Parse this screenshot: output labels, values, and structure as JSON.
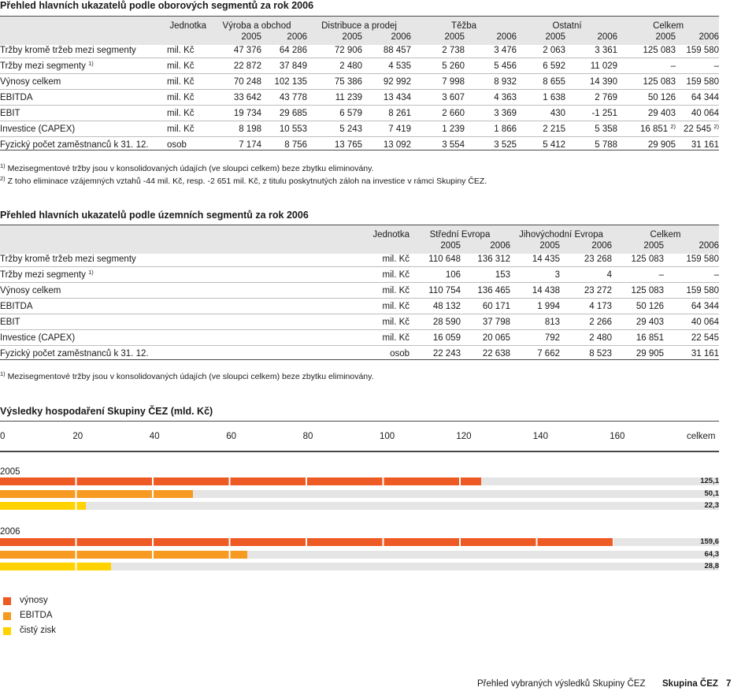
{
  "colors": {
    "revenue": "#ee5a24",
    "ebitda": "#f79a22",
    "net_profit": "#ffd200",
    "track": "#e5e5e5"
  },
  "table1": {
    "title": "Přehled hlavních ukazatelů podle oborových segmentů za rok 2006",
    "headers": {
      "unit": "Jednotka",
      "groups": [
        "Výroba a obchod",
        "Distribuce a prodej",
        "Těžba",
        "Ostatní",
        "Celkem"
      ],
      "years": [
        "2005",
        "2006",
        "2005",
        "2006",
        "2005",
        "2006",
        "2005",
        "2006",
        "2005",
        "2006"
      ]
    },
    "rows": [
      {
        "label": "Tržby kromě tržeb mezi segmenty",
        "unit": "mil. Kč",
        "v": [
          "47 376",
          "64 286",
          "72 906",
          "88 457",
          "2 738",
          "3 476",
          "2 063",
          "3 361",
          "125 083",
          "159 580"
        ]
      },
      {
        "label": "Tržby mezi segmenty",
        "sup": "1)",
        "unit": "mil. Kč",
        "v": [
          "22 872",
          "37 849",
          "2 480",
          "4 535",
          "5 260",
          "5 456",
          "6 592",
          "11 029",
          "–",
          "–"
        ]
      },
      {
        "label": "Výnosy celkem",
        "unit": "mil. Kč",
        "v": [
          "70 248",
          "102 135",
          "75 386",
          "92 992",
          "7 998",
          "8 932",
          "8 655",
          "14 390",
          "125 083",
          "159 580"
        ]
      },
      {
        "label": "EBITDA",
        "unit": "mil. Kč",
        "v": [
          "33 642",
          "43 778",
          "11 239",
          "13 434",
          "3 607",
          "4 363",
          "1 638",
          "2 769",
          "50 126",
          "64 344"
        ]
      },
      {
        "label": "EBIT",
        "unit": "mil. Kč",
        "v": [
          "19 734",
          "29 685",
          "6 579",
          "8 261",
          "2 660",
          "3 369",
          "430",
          "-1 251",
          "29 403",
          "40 064"
        ]
      },
      {
        "label": "Investice (CAPEX)",
        "unit": "mil. Kč",
        "v": [
          "8 198",
          "10 553",
          "5 243",
          "7 419",
          "1 239",
          "1 866",
          "2 215",
          "5 358",
          "16 851",
          "22 545"
        ],
        "sups": [
          "",
          "",
          "",
          "",
          "",
          "",
          "",
          "",
          "2)",
          "2)"
        ]
      },
      {
        "label": "Fyzický počet zaměstnanců k 31. 12.",
        "unit": "osob",
        "v": [
          "7 174",
          "8 756",
          "13 765",
          "13 092",
          "3 554",
          "3 525",
          "5 412",
          "5 788",
          "29 905",
          "31 161"
        ]
      }
    ],
    "note1_mark": "1)",
    "note1": "Mezisegmentové tržby jsou v konsolidovaných údajích (ve sloupci celkem) beze zbytku eliminovány.",
    "note2_mark": "2)",
    "note2": "Z toho eliminace vzájemných vztahů -44 mil. Kč, resp. -2 651 mil. Kč, z titulu poskytnutých záloh na investice v rámci Skupiny ČEZ."
  },
  "table2": {
    "title": "Přehled hlavních ukazatelů podle územních segmentů za rok 2006",
    "headers": {
      "unit": "Jednotka",
      "groups": [
        "Střední Evropa",
        "Jihovýchodní Evropa",
        "Celkem"
      ],
      "years": [
        "2005",
        "2006",
        "2005",
        "2006",
        "2005",
        "2006"
      ]
    },
    "rows": [
      {
        "label": "Tržby kromě tržeb mezi segmenty",
        "unit": "mil. Kč",
        "v": [
          "110 648",
          "136 312",
          "14 435",
          "23 268",
          "125 083",
          "159 580"
        ]
      },
      {
        "label": "Tržby mezi segmenty",
        "sup": "1)",
        "unit": "mil. Kč",
        "v": [
          "106",
          "153",
          "3",
          "4",
          "–",
          "–"
        ]
      },
      {
        "label": "Výnosy celkem",
        "unit": "mil. Kč",
        "v": [
          "110 754",
          "136 465",
          "14 438",
          "23 272",
          "125 083",
          "159 580"
        ]
      },
      {
        "label": "EBITDA",
        "unit": "mil. Kč",
        "v": [
          "48 132",
          "60 171",
          "1 994",
          "4 173",
          "50 126",
          "64 344"
        ]
      },
      {
        "label": "EBIT",
        "unit": "mil. Kč",
        "v": [
          "28 590",
          "37 798",
          "813",
          "2 266",
          "29 403",
          "40 064"
        ]
      },
      {
        "label": "Investice (CAPEX)",
        "unit": "mil. Kč",
        "v": [
          "16 059",
          "20 065",
          "792",
          "2 480",
          "16 851",
          "22 545"
        ]
      },
      {
        "label": "Fyzický počet zaměstnanců k 31. 12.",
        "unit": "osob",
        "v": [
          "22 243",
          "22 638",
          "7 662",
          "8 523",
          "29 905",
          "31 161"
        ]
      }
    ],
    "note1_mark": "1)",
    "note1": "Mezisegmentové tržby jsou v konsolidovaných údajích (ve sloupci celkem) beze zbytku eliminovány."
  },
  "chart_data": {
    "type": "bar",
    "orientation": "horizontal",
    "title": "Výsledky hospodaření Skupiny ČEZ (mld. Kč)",
    "x_ticks": [
      "0",
      "20",
      "40",
      "60",
      "80",
      "100",
      "120",
      "140",
      "160"
    ],
    "x_total_label": "celkem",
    "xlim": [
      0,
      180
    ],
    "categories": [
      "2005",
      "2006"
    ],
    "series": [
      {
        "name": "výnosy",
        "color": "#ee5a24",
        "values": [
          125.1,
          159.6
        ],
        "labels": [
          "125,1",
          "159,6"
        ]
      },
      {
        "name": "EBITDA",
        "color": "#f79a22",
        "values": [
          50.1,
          64.3
        ],
        "labels": [
          "50,1",
          "64,3"
        ]
      },
      {
        "name": "čistý zisk",
        "color": "#ffd200",
        "values": [
          22.3,
          28.8
        ],
        "labels": [
          "22,3",
          "28,8"
        ]
      }
    ],
    "legend": [
      "výnosy",
      "EBITDA",
      "čistý zisk"
    ]
  },
  "footer": {
    "text": "Přehled vybraných výsledků Skupiny ČEZ",
    "brand": "Skupina ČEZ",
    "page": "7"
  }
}
